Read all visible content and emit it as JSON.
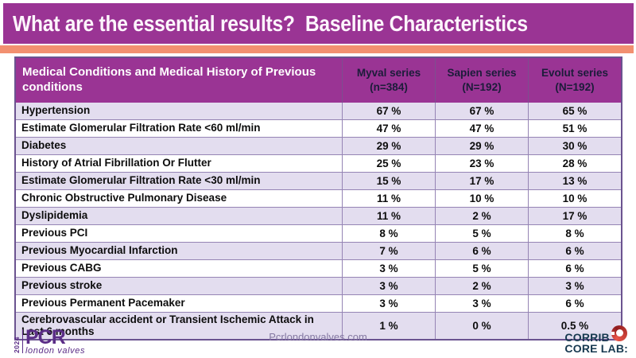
{
  "slide": {
    "title": "What are the essential results?  Baseline Characteristics"
  },
  "colors": {
    "header_purple": "#9a3494",
    "accent_orange": "#f29070",
    "row_lavender": "#e3ddef",
    "pcr_purple": "#5b2d87",
    "corrib_navy": "#16384f",
    "corrib_red": "#c0392b"
  },
  "table": {
    "condition_header": "Medical Conditions and Medical History of Previous conditions",
    "columns": [
      {
        "name": "Myval series",
        "n": "(n=384)"
      },
      {
        "name": "Sapien series",
        "n": "(N=192)"
      },
      {
        "name": "Evolut series",
        "n": "(N=192)"
      }
    ],
    "rows": [
      {
        "condition": "Hypertension",
        "values": [
          "67 %",
          "67 %",
          "65 %"
        ]
      },
      {
        "condition": "Estimate Glomerular Filtration Rate <60 ml/min",
        "values": [
          "47 %",
          "47 %",
          "51 %"
        ]
      },
      {
        "condition": "Diabetes",
        "values": [
          "29 %",
          "29 %",
          "30 %"
        ]
      },
      {
        "condition": "History of Atrial Fibrillation Or Flutter",
        "values": [
          "25 %",
          "23 %",
          "28 %"
        ]
      },
      {
        "condition": "Estimate Glomerular Filtration Rate <30 ml/min",
        "values": [
          "15 %",
          "17 %",
          "13 %"
        ]
      },
      {
        "condition": "Chronic Obstructive Pulmonary Disease",
        "values": [
          "11 %",
          "10 %",
          "10 %"
        ]
      },
      {
        "condition": "Dyslipidemia",
        "values": [
          "11 %",
          "2 %",
          "17 %"
        ]
      },
      {
        "condition": "Previous PCI",
        "values": [
          "8 %",
          "5 %",
          "8 %"
        ]
      },
      {
        "condition": "Previous Myocardial Infarction",
        "values": [
          "7 %",
          "6 %",
          "6 %"
        ]
      },
      {
        "condition": "Previous CABG",
        "values": [
          "3 %",
          "5 %",
          "6 %"
        ]
      },
      {
        "condition": "Previous stroke",
        "values": [
          "3 %",
          "2 %",
          "3 %"
        ]
      },
      {
        "condition": "Previous Permanent Pacemaker",
        "values": [
          "3 %",
          "3 %",
          "6 %"
        ]
      },
      {
        "condition": "Cerebrovascular accident or Transient Ischemic Attack in Last 6 months",
        "values": [
          "1 %",
          "0 %",
          "0.5 %"
        ]
      }
    ]
  },
  "footer": {
    "year": "2024",
    "logo_text": "PCR",
    "logo_subtext": "london valves",
    "website": "Pcrlondonvalves.com",
    "corelab_line1": "CORRIB",
    "corelab_line2": "CORE LAB:"
  }
}
